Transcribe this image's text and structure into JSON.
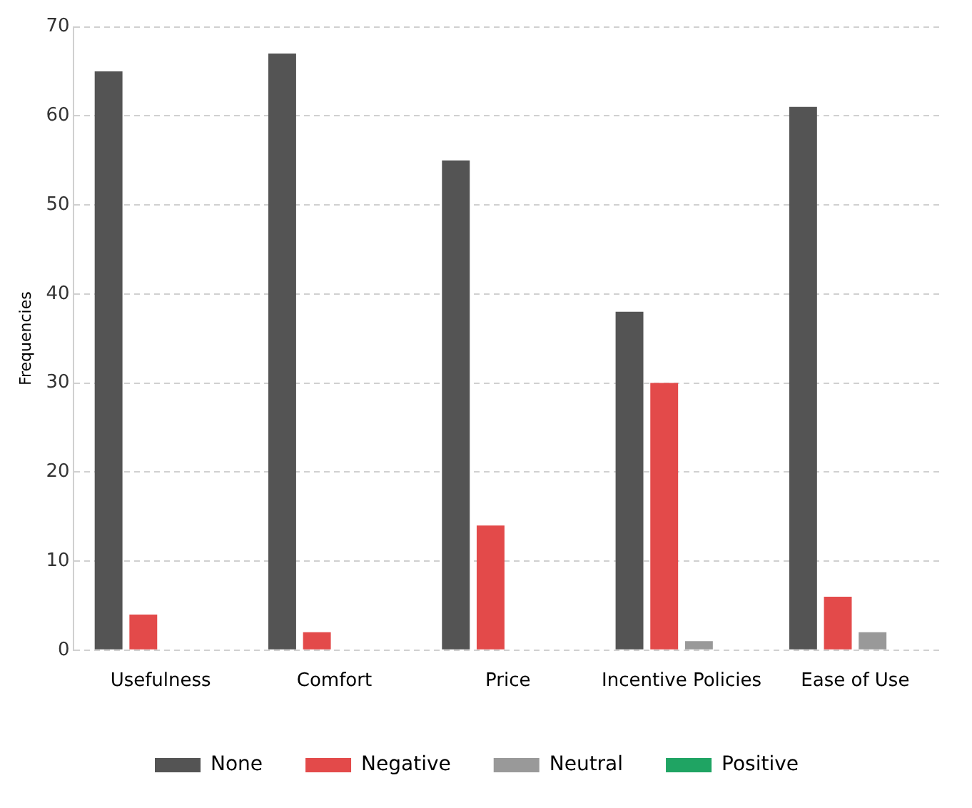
{
  "chart_data": {
    "type": "bar",
    "ylabel": "Frequencies",
    "categories": [
      "Usefulness",
      "Comfort",
      "Price",
      "Incentive Policies",
      "Ease of Use"
    ],
    "series": [
      {
        "name": "None",
        "color": "#545454",
        "values": [
          65,
          67,
          55,
          38,
          61
        ]
      },
      {
        "name": "Negative",
        "color": "#e34a4a",
        "values": [
          4,
          2,
          14,
          30,
          6
        ]
      },
      {
        "name": "Neutral",
        "color": "#999999",
        "values": [
          0,
          0,
          0,
          1,
          2
        ]
      },
      {
        "name": "Positive",
        "color": "#1fa463",
        "values": [
          0,
          0,
          0,
          0,
          0
        ]
      }
    ],
    "ylim": [
      0,
      70
    ],
    "yticks": [
      0,
      10,
      20,
      30,
      40,
      50,
      60,
      70
    ],
    "grid": "y",
    "legend": "bottom"
  }
}
